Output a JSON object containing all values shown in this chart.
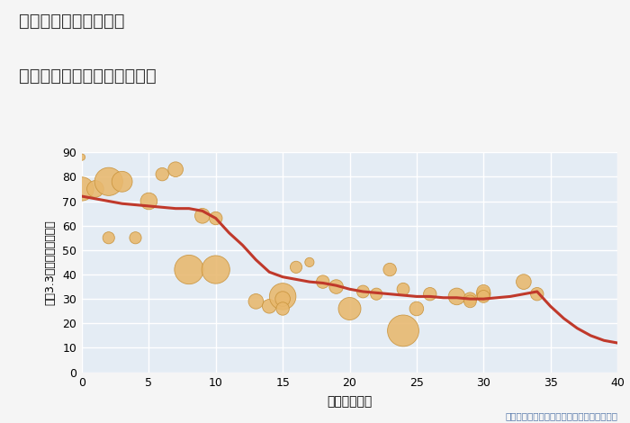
{
  "title_line1": "三重県鈴鹿市大久保町",
  "title_line2": "築年数別中古マンション価格",
  "xlabel": "築年数（年）",
  "ylabel": "坪（3.3㎡）単価（万円）",
  "annotation": "円の大きさは、取引のあった物件面積を示す",
  "xlim": [
    0,
    40
  ],
  "ylim": [
    0,
    90
  ],
  "xticks": [
    0,
    5,
    10,
    15,
    20,
    25,
    30,
    35,
    40
  ],
  "yticks": [
    0,
    10,
    20,
    30,
    40,
    50,
    60,
    70,
    80,
    90
  ],
  "fig_bg_color": "#f5f5f5",
  "plot_bg_color": "#e4ecf4",
  "grid_color": "#ffffff",
  "bubble_color": "#e8b86d",
  "bubble_edge_color": "#c8923a",
  "line_color": "#c0392b",
  "line_width": 2.2,
  "scatter_x": [
    0,
    0,
    1,
    2,
    2,
    3,
    4,
    5,
    6,
    7,
    8,
    9,
    10,
    10,
    13,
    14,
    15,
    15,
    15,
    16,
    17,
    18,
    19,
    20,
    21,
    22,
    23,
    24,
    24,
    25,
    26,
    28,
    29,
    29,
    30,
    30,
    30,
    33,
    34
  ],
  "scatter_y": [
    88,
    75,
    75,
    78,
    55,
    78,
    55,
    70,
    81,
    83,
    42,
    64,
    63,
    42,
    29,
    27,
    31,
    30,
    26,
    43,
    45,
    37,
    35,
    26,
    33,
    32,
    42,
    17,
    34,
    26,
    32,
    31,
    30,
    29,
    32,
    33,
    31,
    37,
    32
  ],
  "scatter_size": [
    15,
    200,
    100,
    280,
    50,
    150,
    50,
    100,
    60,
    80,
    300,
    80,
    60,
    280,
    80,
    70,
    250,
    80,
    60,
    50,
    30,
    60,
    70,
    180,
    55,
    50,
    60,
    350,
    55,
    70,
    60,
    100,
    60,
    55,
    70,
    65,
    55,
    80,
    60
  ],
  "line_x": [
    0,
    1,
    2,
    3,
    4,
    5,
    6,
    7,
    8,
    9,
    10,
    11,
    12,
    13,
    14,
    15,
    16,
    17,
    18,
    19,
    20,
    21,
    22,
    23,
    24,
    25,
    26,
    27,
    28,
    29,
    30,
    31,
    32,
    33,
    34,
    35,
    36,
    37,
    38,
    39,
    40
  ],
  "line_y": [
    72,
    71,
    70,
    69,
    68.5,
    68,
    67.5,
    67,
    67,
    66,
    63,
    57,
    52,
    46,
    41,
    39,
    38,
    37,
    36.5,
    35.5,
    34,
    33,
    32.5,
    32,
    31.5,
    31,
    31,
    30.5,
    30.5,
    30,
    30,
    30.5,
    31,
    32,
    33,
    27,
    22,
    18,
    15,
    13,
    12
  ]
}
